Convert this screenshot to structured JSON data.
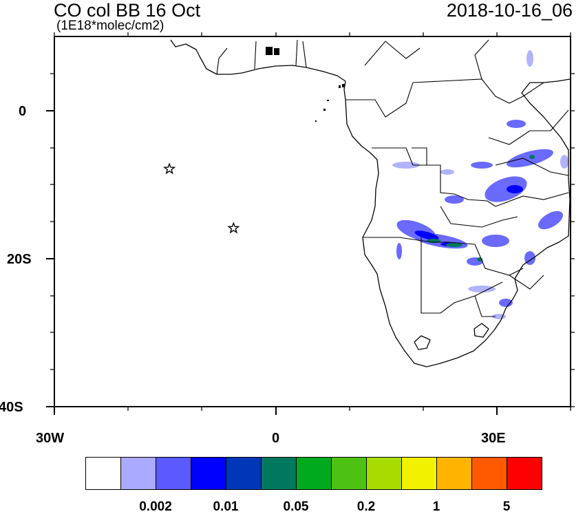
{
  "header": {
    "title": "CO col BB 16 Oct",
    "units": "(1E18*molec/cm2)",
    "datetime": "2018-10-16_06"
  },
  "axes": {
    "y_labels": [
      "0",
      "20S",
      "40S"
    ],
    "x_labels": [
      "30W",
      "0",
      "30E"
    ],
    "lon_range": [
      -30,
      40
    ],
    "lat_range": [
      -40,
      10
    ]
  },
  "colorbar": {
    "colors": [
      "#ffffff",
      "#aaaaff",
      "#5a5aff",
      "#0000ff",
      "#0036b8",
      "#00785e",
      "#00aa1e",
      "#4ec212",
      "#a8dc00",
      "#f2f200",
      "#ffb400",
      "#ff5a00",
      "#ff0000"
    ],
    "labels": [
      "0.002",
      "0.01",
      "0.05",
      "0.2",
      "1",
      "5"
    ]
  },
  "markers": [
    {
      "name": "star-marker-1",
      "lon": -14.4,
      "lat": -7.9
    },
    {
      "name": "star-marker-2",
      "lon": -5.7,
      "lat": -15.9
    }
  ]
}
